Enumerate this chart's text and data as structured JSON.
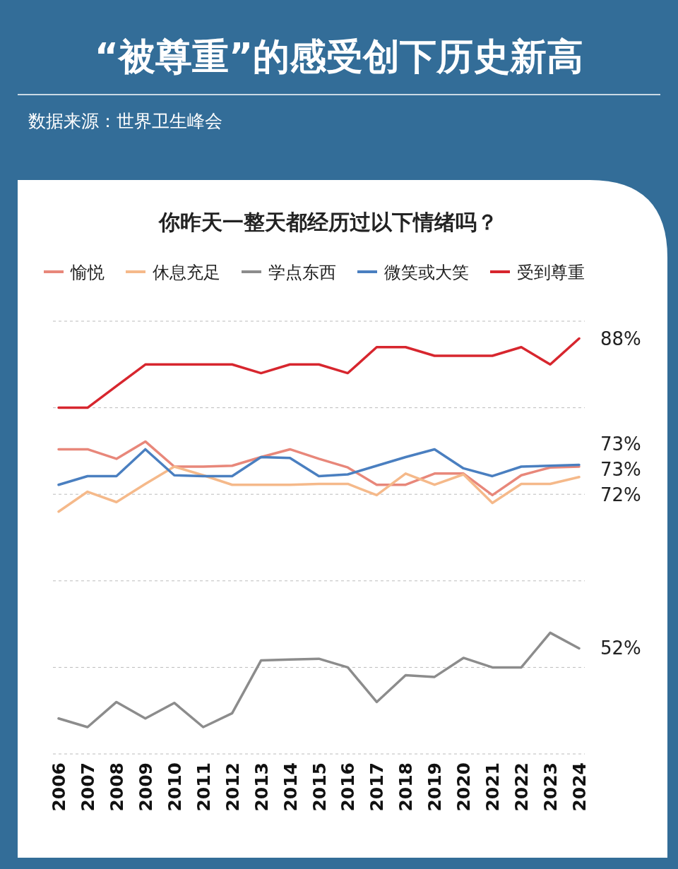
{
  "chart_data": {
    "type": "line",
    "title": "“被尊重”的感受创下历史新高",
    "subtitle": "你昨天一整天都经历过以下情绪吗？",
    "annotations": [
      "数据来源：世界卫生峰会"
    ],
    "categories": [
      "2006",
      "2007",
      "2008",
      "2009",
      "2010",
      "2011",
      "2012",
      "2013",
      "2014",
      "2015",
      "2016",
      "2017",
      "2018",
      "2019",
      "2020",
      "2021",
      "2022",
      "2023",
      "2024"
    ],
    "series": [
      {
        "name": "愉悦",
        "color": "#e8877a",
        "values": [
          75.2,
          75.2,
          74.1,
          76.1,
          73.2,
          73.2,
          73.3,
          74.3,
          75.2,
          74.1,
          73.1,
          71.1,
          71.1,
          72.4,
          72.4,
          69.9,
          72.2,
          73.1,
          73.2
        ],
        "value_labels": [
          null,
          null,
          null,
          null,
          null,
          null,
          null,
          null,
          null,
          null,
          null,
          null,
          null,
          null,
          null,
          null,
          null,
          null,
          "73%"
        ]
      },
      {
        "name": "休息充足",
        "color": "#f5b98a",
        "values": [
          68,
          70.3,
          69.1,
          71.2,
          73.2,
          72.2,
          71.1,
          71.1,
          71.1,
          71.2,
          71.2,
          69.9,
          72.4,
          71.1,
          72.3,
          69,
          71.2,
          71.2,
          72
        ],
        "value_labels": [
          null,
          null,
          null,
          null,
          null,
          null,
          null,
          null,
          null,
          null,
          null,
          null,
          null,
          null,
          null,
          null,
          null,
          null,
          "72%"
        ]
      },
      {
        "name": "学点东西",
        "color": "#8c8c8c",
        "values": [
          44.1,
          43.1,
          46,
          44.1,
          45.9,
          43.1,
          44.7,
          50.8,
          50.9,
          51,
          50,
          46,
          49.1,
          48.9,
          51.1,
          50,
          50,
          54,
          52.2
        ],
        "value_labels": [
          null,
          null,
          null,
          null,
          null,
          null,
          null,
          null,
          null,
          null,
          null,
          null,
          null,
          null,
          null,
          null,
          null,
          null,
          "52%"
        ]
      },
      {
        "name": "微笑或大笑",
        "color": "#4a7fc0",
        "values": [
          71.1,
          72.1,
          72.1,
          75.2,
          72.2,
          72.1,
          72.1,
          74.3,
          74.2,
          72.1,
          72.3,
          73.3,
          74.3,
          75.2,
          73,
          72.1,
          73.2,
          73.3,
          73.4
        ],
        "value_labels": [
          null,
          null,
          null,
          null,
          null,
          null,
          null,
          null,
          null,
          null,
          null,
          null,
          null,
          null,
          null,
          null,
          null,
          null,
          "73%"
        ]
      },
      {
        "name": "受到尊重",
        "color": "#d7262e",
        "values": [
          80,
          80,
          82.5,
          85,
          85,
          85,
          85,
          84,
          85,
          85,
          84,
          87,
          87,
          86,
          86,
          86,
          87,
          85,
          88
        ],
        "value_labels": [
          null,
          null,
          null,
          null,
          null,
          null,
          null,
          null,
          null,
          null,
          null,
          null,
          null,
          null,
          null,
          null,
          null,
          null,
          "88%"
        ]
      }
    ],
    "ylim": [
      40,
      90
    ],
    "yticks": [
      {
        "value": 40,
        "label": null
      },
      {
        "value": 50,
        "label": null
      },
      {
        "value": 60,
        "label": null
      },
      {
        "value": 70,
        "label": null
      },
      {
        "value": 80,
        "label": null
      },
      {
        "value": 90,
        "label": null
      }
    ],
    "tick_labels": "x",
    "grid": "y",
    "legend": "top"
  }
}
